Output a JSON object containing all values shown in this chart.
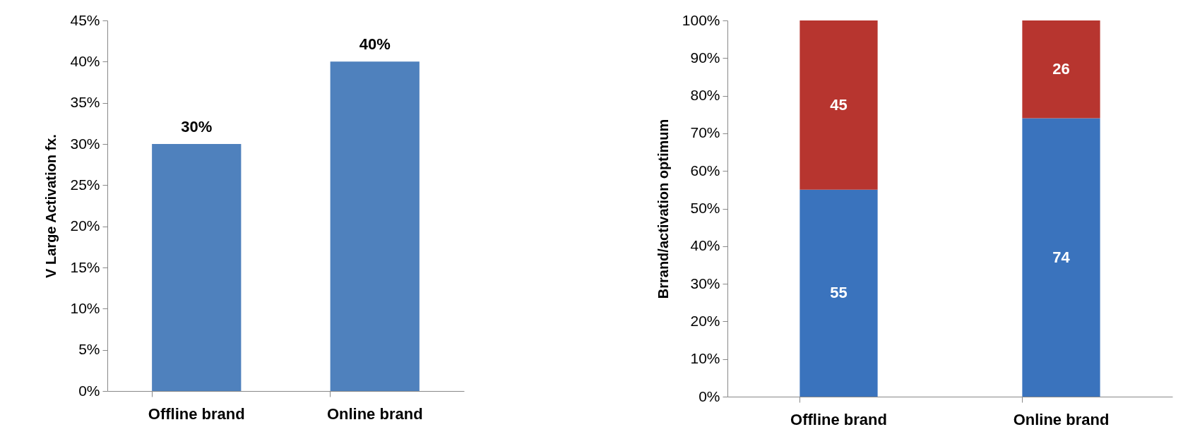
{
  "chart_data": [
    {
      "type": "bar",
      "ylabel": "V Large Activation fx.",
      "categories": [
        "Offline brand",
        "Online brand"
      ],
      "values": [
        30,
        40
      ],
      "value_labels": [
        "30%",
        "40%"
      ],
      "color": "#4f81bd",
      "ylim": [
        0,
        45
      ],
      "yticks": [
        {
          "value": 0,
          "label": "0%"
        },
        {
          "value": 5,
          "label": "5%"
        },
        {
          "value": 10,
          "label": "10%"
        },
        {
          "value": 15,
          "label": "15%"
        },
        {
          "value": 20,
          "label": "20%"
        },
        {
          "value": 25,
          "label": "25%"
        },
        {
          "value": 30,
          "label": "30%"
        },
        {
          "value": 35,
          "label": "35%"
        },
        {
          "value": 40,
          "label": "40%"
        },
        {
          "value": 45,
          "label": "45%"
        }
      ],
      "grid": false
    },
    {
      "type": "bar",
      "ylabel": "Brrand/activation optimum",
      "categories": [
        "Offline brand",
        "Online brand"
      ],
      "stacked": true,
      "data_labels": true,
      "series": [
        {
          "color": "#3a73bd",
          "values": [
            55,
            74
          ]
        },
        {
          "color": "#b7352f",
          "values": [
            45,
            26
          ]
        }
      ],
      "ylim": [
        0,
        100
      ],
      "yticks": [
        {
          "value": 0,
          "label": "0%"
        },
        {
          "value": 10,
          "label": "10%"
        },
        {
          "value": 20,
          "label": "20%"
        },
        {
          "value": 30,
          "label": "30%"
        },
        {
          "value": 40,
          "label": "40%"
        },
        {
          "value": 50,
          "label": "50%"
        },
        {
          "value": 60,
          "label": "60%"
        },
        {
          "value": 70,
          "label": "70%"
        },
        {
          "value": 80,
          "label": "80%"
        },
        {
          "value": 90,
          "label": "90%"
        },
        {
          "value": 100,
          "label": "100%"
        }
      ],
      "grid": false
    }
  ]
}
